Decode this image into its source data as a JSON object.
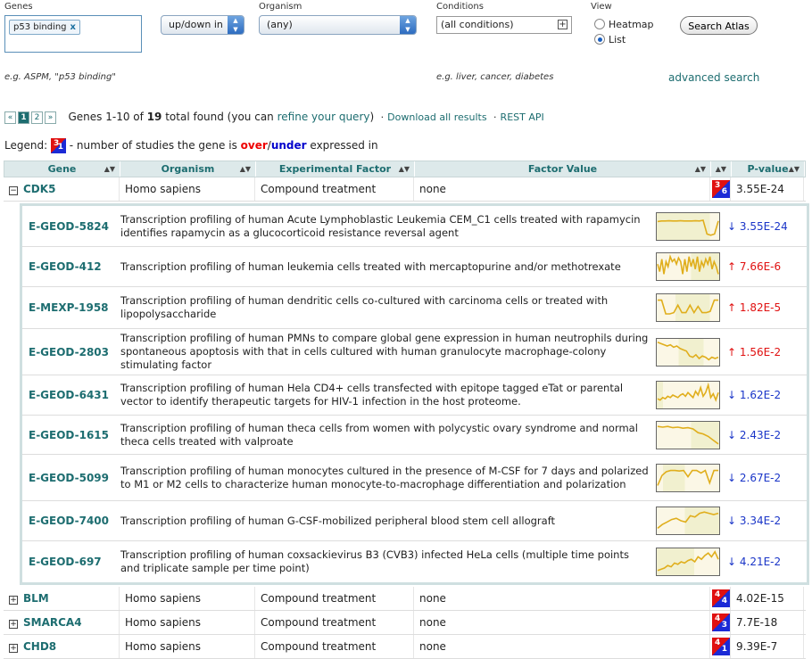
{
  "search": {
    "genes_label": "Genes",
    "gene_token": "p53 binding",
    "gene_token_remove": "x",
    "genes_example": "e.g. ASPM, \"p53 binding\"",
    "updown_value": "up/down in",
    "organism_label": "Organism",
    "organism_value": "(any)",
    "conditions_label": "Conditions",
    "conditions_value": "(all conditions)",
    "conditions_example": "e.g. liver, cancer, diabetes",
    "view_label": "View",
    "view_heatmap": "Heatmap",
    "view_list": "List",
    "search_button": "Search Atlas",
    "advanced_link": "advanced search"
  },
  "results": {
    "prev": "«",
    "pages": [
      "1",
      "2"
    ],
    "next": "»",
    "summary_prefix": "Genes 1-10 of",
    "total": "19",
    "summary_mid": "total found (you can",
    "refine_link": "refine your query",
    "summary_close": ")",
    "download_link": "Download all results",
    "rest_link": "REST API",
    "bullet": "·"
  },
  "legend": {
    "label": "Legend:",
    "up_num": "3",
    "dn_num": "1",
    "text_a": "- number of studies the gene is",
    "over": "over",
    "slash": "/",
    "under": "under",
    "text_b": "expressed in"
  },
  "table": {
    "headers": [
      "Gene",
      "Organism",
      "Experimental Factor",
      "Factor Value",
      "",
      "P-value"
    ],
    "sort_glyph": "▲▼",
    "expanded_gene": {
      "toggle": "−",
      "gene": "CDK5",
      "organism": "Homo sapiens",
      "factor": "Compound treatment",
      "value": "none",
      "up": "3",
      "down": "6",
      "pvalue": "3.55E-24"
    },
    "experiments": [
      {
        "acc": "E-GEOD-5824",
        "desc": "Transcription profiling of human Acute Lymphoblastic Leukemia CEM_C1 cells treated with rapamycin identifies rapamycin as a glucocorticoid resistance reversal agent",
        "pv": "↓ 3.55E-24",
        "dir": "dn",
        "spark": [
          0.7,
          0.72,
          0.72,
          0.73,
          0.72,
          0.72,
          0.73,
          0.72,
          0.72,
          0.72,
          0.73,
          0.72,
          0.75,
          0.2,
          0.15,
          0.2,
          0.72
        ],
        "shade": [
          0.0,
          0.85
        ]
      },
      {
        "acc": "E-GEOD-412",
        "desc": "Transcription profiling of human leukemia cells treated with mercaptopurine and/or methotrexate",
        "pv": "↑ 7.66E-6",
        "dir": "up",
        "spark": [
          0.6,
          0.3,
          0.8,
          0.2,
          0.7,
          0.5,
          0.9,
          0.7,
          0.8,
          0.6,
          0.85,
          0.7,
          0.2,
          0.8,
          0.3,
          0.9,
          0.5,
          0.8,
          0.4,
          0.9,
          0.3,
          0.7,
          0.5,
          0.8,
          0.6,
          0.9,
          0.4,
          0.7,
          0.5,
          0.2
        ],
        "shade": [
          0.55,
          1.0
        ]
      },
      {
        "acc": "E-MEXP-1958",
        "desc": "Transcription profiling of human dendritic cells co-cultured with carcinoma cells or treated with lipopolysaccharide",
        "pv": "↑ 1.82E-5",
        "dir": "up",
        "spark": [
          0.8,
          0.8,
          0.25,
          0.25,
          0.3,
          0.6,
          0.3,
          0.3,
          0.6,
          0.3,
          0.55,
          0.3,
          0.3,
          0.35,
          0.8,
          0.8
        ],
        "shade": [
          0.3,
          0.85
        ]
      },
      {
        "acc": "E-GEOD-2803",
        "desc": "Transcription profiling of human PMNs to compare global gene expression in human neutrophils during spontaneous apoptosis with that in cells cultured with human granulocyte macrophage-colony stimulating factor",
        "pv": "↑ 1.56E-2",
        "dir": "up",
        "spark": [
          0.9,
          0.85,
          0.8,
          0.75,
          0.8,
          0.7,
          0.75,
          0.65,
          0.6,
          0.55,
          0.35,
          0.3,
          0.4,
          0.25,
          0.35,
          0.3,
          0.2,
          0.3,
          0.25,
          0.3
        ],
        "shade": [
          0.35,
          0.75
        ]
      },
      {
        "acc": "E-GEOD-6431",
        "desc": "Transcription profiling of human Hela CD4+ cells transfected with epitope tagged eTat or parental vector to identify therapeutic targets for HIV-1 infection in the host proteome.",
        "pv": "↓ 1.62E-2",
        "dir": "dn",
        "spark": [
          0.35,
          0.3,
          0.4,
          0.35,
          0.45,
          0.4,
          0.5,
          0.45,
          0.4,
          0.5,
          0.55,
          0.45,
          0.6,
          0.5,
          0.4,
          0.65,
          0.5,
          0.8,
          0.45,
          0.6,
          0.9,
          0.4,
          0.55,
          0.3,
          0.6
        ],
        "shade": [
          0.0,
          0.1
        ]
      },
      {
        "acc": "E-GEOD-1615",
        "desc": "Transcription profiling of human theca cells from women with polycystic ovary syndrome and normal theca cells treated with valproate",
        "pv": "↓ 2.43E-2",
        "dir": "dn",
        "spark": [
          0.85,
          0.82,
          0.85,
          0.8,
          0.82,
          0.78,
          0.8,
          0.75,
          0.6,
          0.55,
          0.45,
          0.3,
          0.15
        ],
        "shade": [
          0.55,
          1.0
        ]
      },
      {
        "acc": "E-GEOD-5099",
        "desc": "Transcription profiling of human monocytes cultured in the presence of M-CSF for 7 days and polarized to M1 or M2 cells to characterize human monocyte-to-macrophage differentiation and polarization",
        "pv": "↓ 2.67E-2",
        "dir": "dn",
        "spark": [
          0.2,
          0.6,
          0.75,
          0.8,
          0.8,
          0.78,
          0.8,
          0.55,
          0.8,
          0.8,
          0.7,
          0.8,
          0.3,
          0.8,
          0.8
        ],
        "shade": [
          0.1,
          0.45
        ]
      },
      {
        "acc": "E-GEOD-7400",
        "desc": "Transcription profiling of human G-CSF-mobilized peripheral blood stem cell allograft",
        "pv": "↓ 3.34E-2",
        "dir": "dn",
        "spark": [
          0.2,
          0.35,
          0.45,
          0.55,
          0.6,
          0.5,
          0.45,
          0.7,
          0.65,
          0.8,
          0.85,
          0.8,
          0.75,
          0.8
        ],
        "shade": [
          0.45,
          1.0
        ]
      },
      {
        "acc": "E-GEOD-697",
        "desc": "Transcription profiling of human coxsackievirus B3 (CVB3) infected HeLa cells (multiple time points and triplicate sample per time point)",
        "pv": "↓ 4.21E-2",
        "dir": "dn",
        "spark": [
          0.15,
          0.2,
          0.25,
          0.35,
          0.3,
          0.45,
          0.4,
          0.5,
          0.45,
          0.55,
          0.6,
          0.5,
          0.7,
          0.6,
          0.75,
          0.85,
          0.7,
          0.9,
          0.6
        ],
        "shade": [
          0.0,
          0.6
        ]
      }
    ],
    "collapsed_genes": [
      {
        "toggle": "+",
        "gene": "BLM",
        "organism": "Homo sapiens",
        "factor": "Compound treatment",
        "value": "none",
        "up": "4",
        "down": "4",
        "pvalue": "4.02E-15"
      },
      {
        "toggle": "+",
        "gene": "SMARCA4",
        "organism": "Homo sapiens",
        "factor": "Compound treatment",
        "value": "none",
        "up": "4",
        "down": "3",
        "pvalue": "7.7E-18"
      },
      {
        "toggle": "+",
        "gene": "CHD8",
        "organism": "Homo sapiens",
        "factor": "Compound treatment",
        "value": "none",
        "up": "4",
        "down": "1",
        "pvalue": "9.39E-7"
      }
    ]
  }
}
